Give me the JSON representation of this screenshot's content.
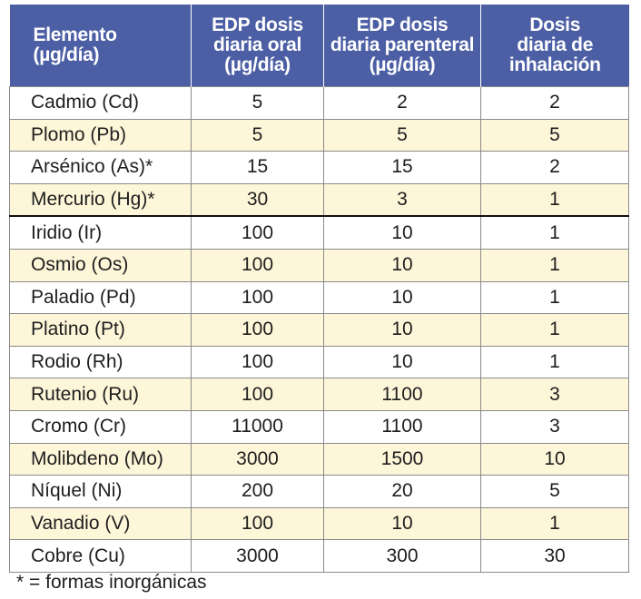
{
  "table": {
    "headers": [
      {
        "lines": [
          "Elemento",
          "(µg/día)"
        ]
      },
      {
        "lines": [
          "EDP dosis",
          "diaria oral",
          "(µg/día)"
        ]
      },
      {
        "lines": [
          "EDP dosis",
          "diaria parenteral",
          "(µg/día)"
        ]
      },
      {
        "lines": [
          "Dosis",
          "diaria de",
          "inhalación"
        ]
      }
    ],
    "rows": [
      [
        "Cadmio (Cd)",
        "5",
        "2",
        "2"
      ],
      [
        "Plomo (Pb)",
        "5",
        "5",
        "5"
      ],
      [
        "Arsénico (As)*",
        "15",
        "15",
        "2"
      ],
      [
        "Mercurio (Hg)*",
        "30",
        "3",
        "1"
      ],
      [
        "Iridio (Ir)",
        "100",
        "10",
        "1"
      ],
      [
        "Osmio (Os)",
        "100",
        "10",
        "1"
      ],
      [
        "Paladio (Pd)",
        "100",
        "10",
        "1"
      ],
      [
        "Platino (Pt)",
        "100",
        "10",
        "1"
      ],
      [
        "Rodio (Rh)",
        "100",
        "10",
        "1"
      ],
      [
        "Rutenio (Ru)",
        "100",
        "1100",
        "3"
      ],
      [
        "Cromo (Cr)",
        "11000",
        "1100",
        "3"
      ],
      [
        "Molibdeno (Mo)",
        "3000",
        "1500",
        "10"
      ],
      [
        "Níquel (Ni)",
        "200",
        "20",
        "5"
      ],
      [
        "Vanadio (V)",
        "100",
        "10",
        "1"
      ],
      [
        "Cobre (Cu)",
        "3000",
        "300",
        "30"
      ]
    ]
  },
  "footnote": "* = formas inorgánicas",
  "colors": {
    "header_bg": "#4c5fa4",
    "row_alt_bg": "#fdf6d9"
  }
}
